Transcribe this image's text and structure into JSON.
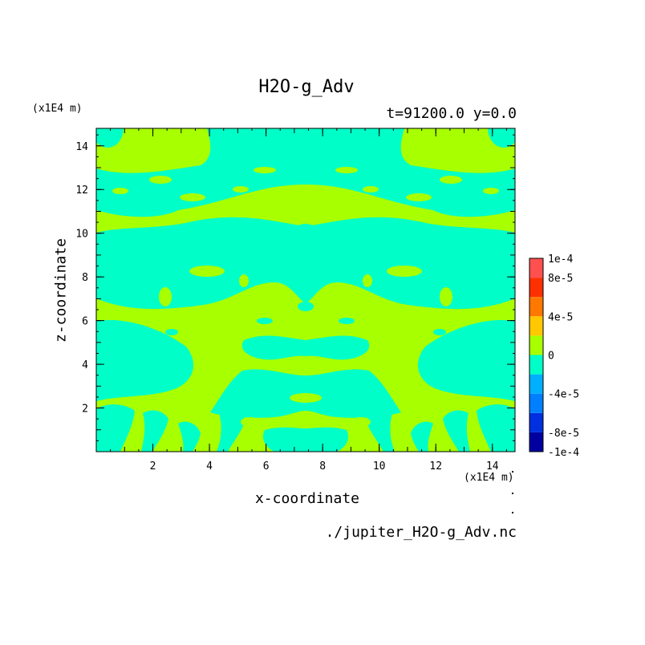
{
  "chart_data": {
    "type": "heatmap",
    "title": "H2O-g_Adv",
    "subtitle": "t=91200.0 y=0.0",
    "xlabel": "x-coordinate",
    "ylabel": "z-coordinate",
    "x_unit": "(x1E4 m)",
    "y_unit": "(x1E4 m)",
    "xlim": [
      0,
      14.8
    ],
    "ylim": [
      0,
      14.8
    ],
    "x_ticks": [
      2,
      4,
      6,
      8,
      10,
      12,
      14
    ],
    "y_ticks": [
      2,
      4,
      6,
      8,
      10,
      12,
      14
    ],
    "grid": false,
    "field_summary": "Near-zero advection field: most of the domain lies in the 0 to 2e-5 band (yellow-green) with large regions in the -2e-5 to 0 band (cyan); pattern is mirror-symmetric about x = 7.4",
    "colorbar": {
      "levels": [
        -0.0001,
        -8e-05,
        -6e-05,
        -4e-05,
        -2e-05,
        0,
        2e-05,
        4e-05,
        6e-05,
        8e-05,
        0.0001
      ],
      "colors": [
        "#0000a0",
        "#0030e0",
        "#0080ff",
        "#00b0ff",
        "#00ffc8",
        "#a8ff00",
        "#ffc800",
        "#ff7800",
        "#ff3000",
        "#ff5050"
      ],
      "tick_labels": [
        {
          "value": 0.0001,
          "label": "1e-4"
        },
        {
          "value": 8e-05,
          "label": "8e-5"
        },
        {
          "value": 4e-05,
          "label": "4e-5"
        },
        {
          "value": 0,
          "label": "0"
        },
        {
          "value": -4e-05,
          "label": "-4e-5"
        },
        {
          "value": -8e-05,
          "label": "-8e-5"
        },
        {
          "value": -0.0001,
          "label": "-1e-4"
        }
      ]
    }
  },
  "filename": "./jupiter_H2O-g_Adv.nc",
  "colors": {
    "positive_small": "#a8ff00",
    "negative_small": "#00ffc8"
  }
}
